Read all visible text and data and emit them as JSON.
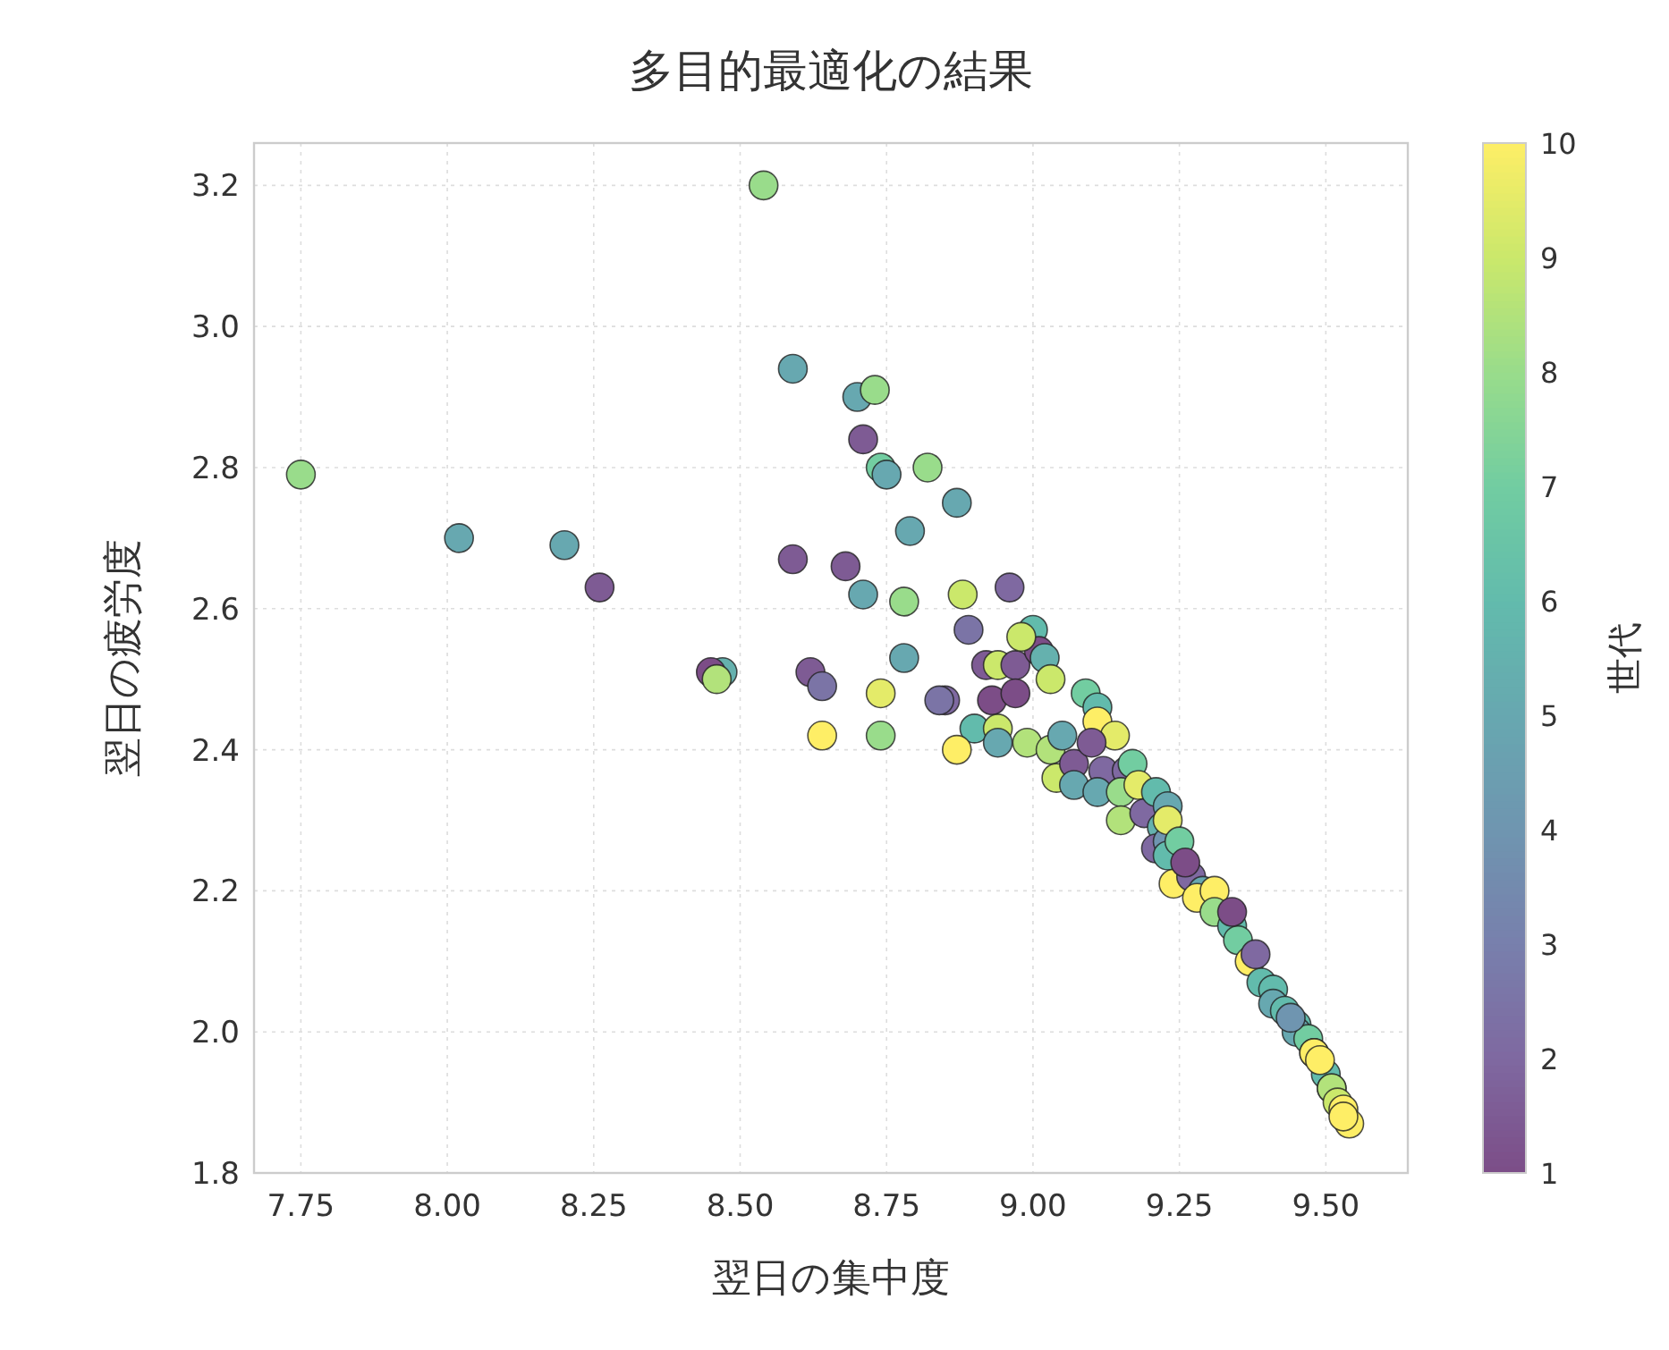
{
  "chart_data": {
    "type": "scatter",
    "title": "多目的最適化の結果",
    "xlabel": "翌日の集中度",
    "ylabel": "翌日の疲労度",
    "clabel": "世代",
    "x": [
      8.54,
      7.75,
      8.02,
      8.2,
      8.26,
      8.59,
      8.7,
      8.73,
      8.71,
      8.74,
      8.75,
      8.82,
      8.87,
      8.79,
      8.59,
      8.68,
      8.71,
      8.78,
      8.88,
      8.96,
      8.89,
      8.78,
      8.74,
      8.74,
      8.62,
      8.64,
      8.47,
      8.45,
      8.46,
      8.64,
      8.85,
      8.84,
      8.9,
      8.87,
      8.92,
      8.94,
      8.97,
      8.93,
      9.0,
      9.01,
      9.02,
      8.98,
      9.03,
      8.94,
      8.94,
      8.99,
      9.03,
      9.04,
      9.05,
      9.07,
      9.07,
      9.09,
      9.11,
      9.11,
      9.14,
      9.1,
      9.12,
      9.11,
      9.16,
      9.17,
      9.15,
      9.18,
      9.15,
      9.19,
      9.21,
      9.23,
      9.22,
      9.21,
      9.23,
      9.23,
      9.23,
      9.25,
      9.24,
      9.27,
      9.29,
      9.28,
      9.31,
      9.31,
      9.34,
      9.35,
      9.37,
      9.38,
      9.39,
      9.41,
      9.41,
      9.43,
      9.45,
      9.45,
      9.47,
      9.48,
      9.48,
      9.5,
      9.51,
      9.51,
      9.52,
      9.53,
      9.54,
      9.53,
      9.49,
      9.44,
      9.34,
      9.26,
      8.97
    ],
    "values": [
      3.2,
      2.79,
      2.7,
      2.69,
      2.63,
      2.94,
      2.9,
      2.91,
      2.84,
      2.8,
      2.79,
      2.8,
      2.75,
      2.71,
      2.67,
      2.66,
      2.62,
      2.61,
      2.62,
      2.63,
      2.57,
      2.53,
      2.48,
      2.42,
      2.51,
      2.49,
      2.51,
      2.51,
      2.5,
      2.42,
      2.47,
      2.47,
      2.43,
      2.4,
      2.52,
      2.52,
      2.52,
      2.47,
      2.57,
      2.54,
      2.53,
      2.56,
      2.5,
      2.43,
      2.41,
      2.41,
      2.4,
      2.36,
      2.42,
      2.38,
      2.35,
      2.48,
      2.46,
      2.44,
      2.42,
      2.41,
      2.37,
      2.34,
      2.37,
      2.38,
      2.34,
      2.35,
      2.3,
      2.31,
      2.34,
      2.32,
      2.29,
      2.26,
      2.27,
      2.3,
      2.25,
      2.27,
      2.21,
      2.22,
      2.2,
      2.19,
      2.2,
      2.17,
      2.15,
      2.13,
      2.1,
      2.11,
      2.07,
      2.06,
      2.04,
      2.03,
      2.01,
      2.0,
      1.99,
      1.97,
      1.97,
      1.94,
      1.92,
      1.92,
      1.9,
      1.89,
      1.87,
      1.88,
      1.96,
      2.02,
      2.17,
      2.24,
      2.48
    ],
    "cvalues": [
      8,
      8,
      5,
      5,
      1.5,
      5,
      5,
      8,
      1.5,
      7,
      5,
      8,
      5,
      5,
      1.5,
      1.5,
      5,
      8,
      9,
      2,
      2.5,
      5,
      9.5,
      8,
      1.5,
      2.5,
      5.5,
      1,
      8.5,
      10,
      2,
      2.5,
      6,
      10,
      1.5,
      9,
      1.5,
      1,
      6,
      1,
      5.5,
      9,
      9,
      9,
      5,
      8.5,
      8.5,
      9,
      5,
      1.5,
      5,
      7,
      6,
      10,
      9.5,
      1.5,
      2,
      5,
      2,
      7,
      8,
      9.5,
      8.5,
      2,
      6,
      5,
      5.5,
      2,
      4,
      9.5,
      6,
      7,
      10,
      2,
      5,
      10,
      10,
      8,
      6,
      7,
      10,
      2,
      6,
      6,
      5,
      6,
      6,
      5,
      7,
      4,
      10,
      6,
      6,
      8.5,
      9,
      10,
      10,
      10,
      10,
      4,
      1,
      1,
      1
    ],
    "clim": [
      1,
      10
    ],
    "cticks": [
      1,
      2,
      3,
      4,
      5,
      6,
      7,
      8,
      9,
      10
    ],
    "xlim": [
      7.67,
      9.64
    ],
    "ylim": [
      1.8,
      3.26
    ],
    "xticks": [
      7.75,
      {
        "value": 8,
        "label": "8.00"
      },
      8.25,
      {
        "value": 8.5,
        "label": "8.50"
      },
      8.75,
      {
        "value": 9,
        "label": "9.00"
      },
      9.25,
      {
        "value": 9.5,
        "label": "9.50"
      }
    ],
    "yticks": [
      {
        "value": 1.8,
        "label": "1.8"
      },
      {
        "value": 2,
        "label": "2.0"
      },
      2.2,
      2.4,
      2.6,
      2.8,
      {
        "value": 3,
        "label": "3.0"
      },
      3.2
    ],
    "grid": true,
    "marker": "circle"
  }
}
